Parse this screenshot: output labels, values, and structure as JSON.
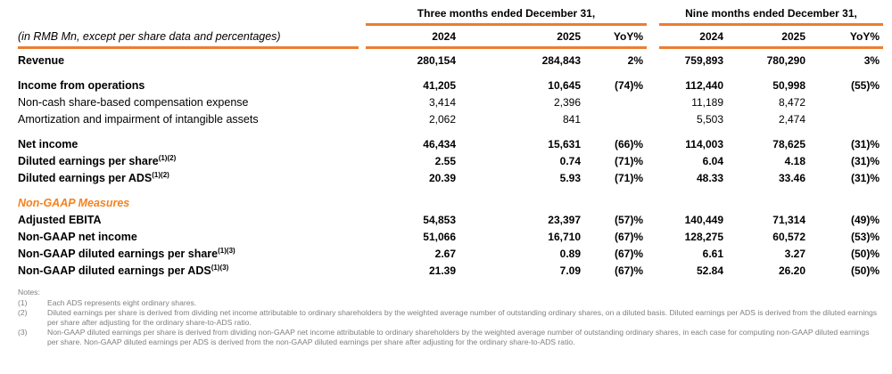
{
  "meta": {
    "row_header": "(in RMB Mn, except per share data and percentages)"
  },
  "colors": {
    "rule_orange": "#ED7D31",
    "section_heading_orange": "#F58220",
    "notes_gray": "#7F7F7F"
  },
  "groups": [
    {
      "title": "Three months ended December 31,",
      "columns": [
        "2024",
        "2025",
        "YoY%"
      ]
    },
    {
      "title": "Nine months ended December 31,",
      "columns": [
        "2024",
        "2025",
        "YoY%"
      ]
    }
  ],
  "rows": [
    {
      "label": "Revenue",
      "sup": "",
      "values": [
        "280,154",
        "284,843",
        "2%",
        "759,893",
        "780,290",
        "3%"
      ]
    },
    {
      "label": "Income from operations",
      "sup": "",
      "values": [
        "41,205",
        "10,645",
        "(74)%",
        "112,440",
        "50,998",
        "(55)%"
      ]
    },
    {
      "label": "Non-cash share-based compensation expense",
      "sup": "",
      "values": [
        "3,414",
        "2,396",
        "",
        "11,189",
        "8,472",
        ""
      ]
    },
    {
      "label": "Amortization and impairment of intangible assets",
      "sup": "",
      "values": [
        "2,062",
        "841",
        "",
        "5,503",
        "2,474",
        ""
      ]
    },
    {
      "label": "Net income",
      "sup": "",
      "values": [
        "46,434",
        "15,631",
        "(66)%",
        "114,003",
        "78,625",
        "(31)%"
      ]
    },
    {
      "label": "Diluted earnings per share",
      "sup": "(1)(2)",
      "values": [
        "2.55",
        "0.74",
        "(71)%",
        "6.04",
        "4.18",
        "(31)%"
      ]
    },
    {
      "label": "Diluted earnings per ADS",
      "sup": "(1)(2)",
      "values": [
        "20.39",
        "5.93",
        "(71)%",
        "48.33",
        "33.46",
        "(31)%"
      ]
    },
    {
      "label": "Non-GAAP Measures",
      "sup": "",
      "values": [
        "",
        "",
        "",
        "",
        "",
        ""
      ]
    },
    {
      "label": "Adjusted EBITA",
      "sup": "",
      "values": [
        "54,853",
        "23,397",
        "(57)%",
        "140,449",
        "71,314",
        "(49)%"
      ]
    },
    {
      "label": "Non-GAAP net income",
      "sup": "",
      "values": [
        "51,066",
        "16,710",
        "(67)%",
        "128,275",
        "60,572",
        "(53)%"
      ]
    },
    {
      "label": "Non-GAAP diluted earnings per share",
      "sup": "(1)(3)",
      "values": [
        "2.67",
        "0.89",
        "(67)%",
        "6.61",
        "3.27",
        "(50)%"
      ]
    },
    {
      "label": "Non-GAAP diluted earnings per ADS",
      "sup": "(1)(3)",
      "values": [
        "21.39",
        "7.09",
        "(67)%",
        "52.84",
        "26.20",
        "(50)%"
      ]
    }
  ],
  "notes": {
    "title": "Notes:",
    "items": [
      {
        "num": "(1)",
        "text": "Each ADS represents eight ordinary shares."
      },
      {
        "num": "(2)",
        "text": "Diluted earnings per share is derived from dividing net income attributable to ordinary shareholders by the weighted average number of outstanding ordinary shares, on a diluted basis. Diluted earnings per ADS is derived from the diluted earnings per share after adjusting for the ordinary share-to-ADS ratio."
      },
      {
        "num": "(3)",
        "text": "Non-GAAP diluted earnings per share is derived from dividing non-GAAP net income attributable to ordinary shareholders by the weighted average number of outstanding ordinary shares, in each case for computing non-GAAP diluted earnings per share. Non-GAAP diluted earnings per ADS is derived from the non-GAAP diluted earnings per share after adjusting for the ordinary share-to-ADS ratio."
      }
    ]
  }
}
